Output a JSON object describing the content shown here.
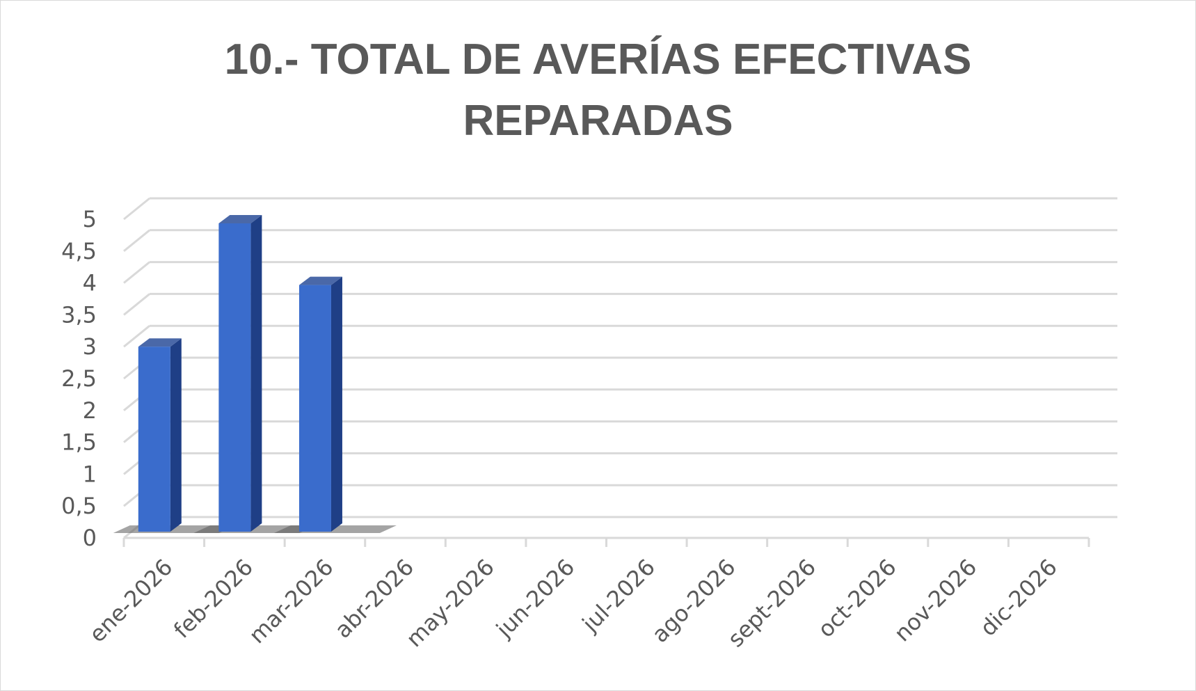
{
  "chart_data": {
    "type": "bar",
    "title_lines": [
      "10.- TOTAL DE AVERÍAS EFECTIVAS",
      "REPARADAS"
    ],
    "categories": [
      "ene-2026",
      "feb-2026",
      "mar-2026",
      "abr-2026",
      "may-2026",
      "jun-2026",
      "jul-2026",
      "ago-2026",
      "sept-2026",
      "oct-2026",
      "nov-2026",
      "dic-2026"
    ],
    "values": [
      3,
      5,
      4,
      null,
      null,
      null,
      null,
      null,
      null,
      null,
      null,
      null
    ],
    "y_ticks": [
      "0",
      "0,5",
      "1",
      "1,5",
      "2",
      "2,5",
      "3",
      "3,5",
      "4",
      "4,5",
      "5"
    ],
    "ylim": [
      0,
      5
    ],
    "xlabel": "",
    "ylabel": "",
    "grid": true,
    "legend": "none",
    "bar_color": "#3a6ccc",
    "bar_top_color": "#4a68a8",
    "bar_side_color": "#1f3f86",
    "grid_color": "#d9d9d9",
    "text_color": "#595959"
  }
}
